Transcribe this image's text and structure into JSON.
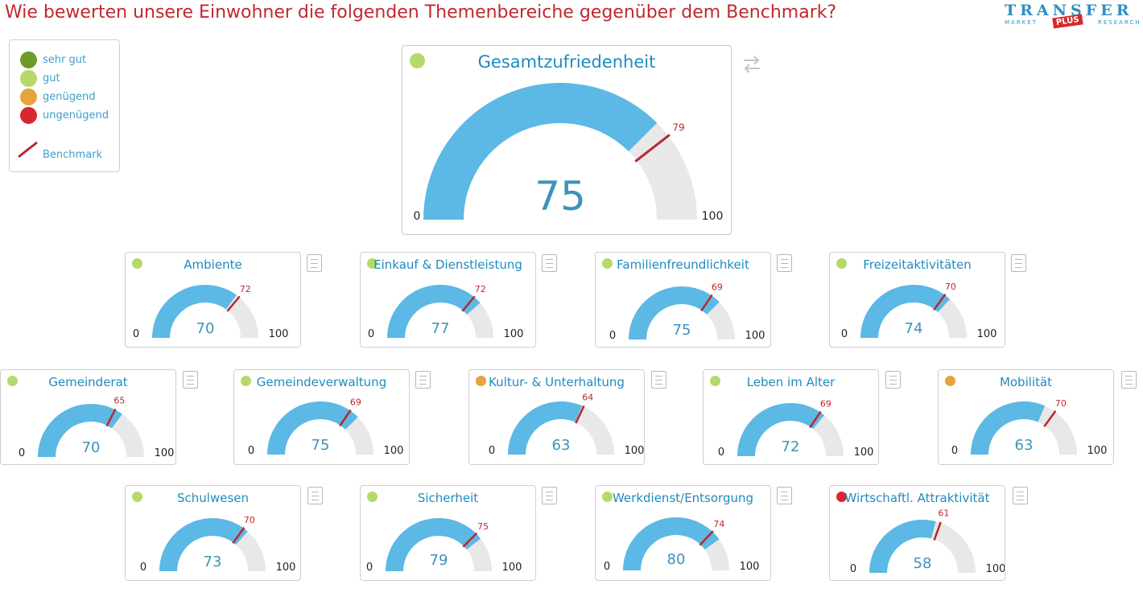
{
  "header": {
    "title": "Wie bewerten unsere Einwohner die folgenden Themenbereiche gegenüber dem Benchmark?",
    "logo": {
      "main": "TRANSFER",
      "plus": "PLUS",
      "sub_left": "MARKET",
      "sub_right": "RESEARCH"
    }
  },
  "legend": {
    "items": [
      {
        "label": "sehr gut",
        "color": "#6e9a2a"
      },
      {
        "label": "gut",
        "color": "#b5d96a"
      },
      {
        "label": "genügend",
        "color": "#e6a33e"
      },
      {
        "label": "ungenügend",
        "color": "#d8282e"
      }
    ],
    "benchmark_label": "Benchmark",
    "benchmark_color": "#b8282e"
  },
  "colors": {
    "fill": "#5cb8e4",
    "track": "#e8e8e8",
    "benchmark": "#b8282e",
    "title": "#1f8bbd"
  },
  "main_gauge": {
    "title": "Gesamtzufriedenheit",
    "value": "75",
    "benchmark": "79",
    "min_label": "0",
    "max_label": "100",
    "status": "gut"
  },
  "topics": [
    {
      "title": "Ambiente",
      "value": "70",
      "benchmark": "72",
      "min_label": "0",
      "max_label": "100",
      "status": "gut"
    },
    {
      "title": "Einkauf & Dienstleistung",
      "value": "77",
      "benchmark": "72",
      "min_label": "0",
      "max_label": "100",
      "status": "gut"
    },
    {
      "title": "Familienfreundlichkeit",
      "value": "75",
      "benchmark": "69",
      "min_label": "0",
      "max_label": "100",
      "status": "gut"
    },
    {
      "title": "Freizeitaktivitäten",
      "value": "74",
      "benchmark": "70",
      "min_label": "0",
      "max_label": "100",
      "status": "gut"
    },
    {
      "title": "Gemeinderat",
      "value": "70",
      "benchmark": "65",
      "min_label": "0",
      "max_label": "100",
      "status": "gut"
    },
    {
      "title": "Gemeindeverwaltung",
      "value": "75",
      "benchmark": "69",
      "min_label": "0",
      "max_label": "100",
      "status": "gut"
    },
    {
      "title": "Kultur- & Unterhaltung",
      "value": "63",
      "benchmark": "64",
      "min_label": "0",
      "max_label": "100",
      "status": "genügend"
    },
    {
      "title": "Leben im Alter",
      "value": "72",
      "benchmark": "69",
      "min_label": "0",
      "max_label": "100",
      "status": "gut"
    },
    {
      "title": "Mobilität",
      "value": "63",
      "benchmark": "70",
      "min_label": "0",
      "max_label": "100",
      "status": "genügend"
    },
    {
      "title": "Schulwesen",
      "value": "73",
      "benchmark": "70",
      "min_label": "0",
      "max_label": "100",
      "status": "gut"
    },
    {
      "title": "Sicherheit",
      "value": "79",
      "benchmark": "75",
      "min_label": "0",
      "max_label": "100",
      "status": "gut"
    },
    {
      "title": "Werkdienst/Entsorgung",
      "value": "80",
      "benchmark": "74",
      "min_label": "0",
      "max_label": "100",
      "status": "gut"
    },
    {
      "title": "Wirtschaftl. Attraktivität",
      "value": "58",
      "benchmark": "61",
      "min_label": "0",
      "max_label": "100",
      "status": "ungenügend"
    }
  ]
}
